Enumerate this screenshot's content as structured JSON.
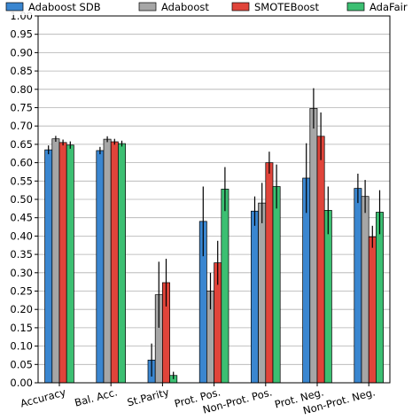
{
  "chart_data": {
    "type": "bar",
    "categories": [
      "Accuracy",
      "Bal. Acc.",
      "St.Parity",
      "Prot. Pos.",
      "Non-Prot. Pos.",
      "Prot. Neg.",
      "Non-Prot. Neg."
    ],
    "series": [
      {
        "name": "Adaboost SDB",
        "color": "#3a86d0",
        "values": [
          0.635,
          0.633,
          0.062,
          0.44,
          0.468,
          0.558,
          0.53
        ],
        "errors": [
          0.012,
          0.01,
          0.045,
          0.095,
          0.04,
          0.095,
          0.04
        ]
      },
      {
        "name": "Adaboost",
        "color": "#a6a6a6",
        "values": [
          0.665,
          0.664,
          0.24,
          0.25,
          0.49,
          0.748,
          0.508
        ],
        "errors": [
          0.008,
          0.008,
          0.09,
          0.05,
          0.055,
          0.055,
          0.045
        ]
      },
      {
        "name": "SMOTEBoost",
        "color": "#e0443a",
        "values": [
          0.655,
          0.657,
          0.273,
          0.327,
          0.6,
          0.672,
          0.398
        ],
        "errors": [
          0.008,
          0.008,
          0.065,
          0.06,
          0.03,
          0.065,
          0.03
        ]
      },
      {
        "name": "AdaFair",
        "color": "#3cbf72",
        "values": [
          0.648,
          0.652,
          0.02,
          0.528,
          0.535,
          0.47,
          0.465
        ],
        "errors": [
          0.01,
          0.008,
          0.01,
          0.06,
          0.06,
          0.065,
          0.06
        ]
      }
    ],
    "yticks": [
      "0.00",
      "0.05",
      "0.10",
      "0.15",
      "0.20",
      "0.25",
      "0.30",
      "0.35",
      "0.40",
      "0.45",
      "0.50",
      "0.55",
      "0.60",
      "0.65",
      "0.70",
      "0.75",
      "0.80",
      "0.85",
      "0.90",
      "0.95",
      "1.00"
    ],
    "ylim": [
      0,
      1.0
    ],
    "grid": true,
    "legend_position": "top"
  }
}
